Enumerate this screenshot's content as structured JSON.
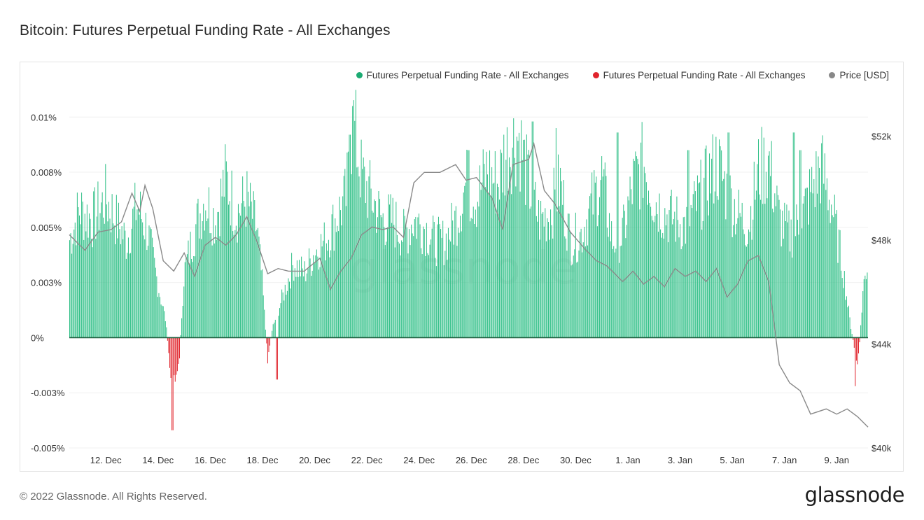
{
  "title": "Bitcoin: Futures Perpetual Funding Rate - All Exchanges",
  "footer": "© 2022 Glassnode. All Rights Reserved.",
  "logo": "glassnode",
  "watermark": "glassnode",
  "colors": {
    "positive": "#2ebf86",
    "negative": "#e0242c",
    "price": "#8a8a8a",
    "zero_line": "#1f5f3f"
  },
  "chart_data": {
    "type": "bar",
    "title": "Bitcoin: Futures Perpetual Funding Rate - All Exchanges",
    "legend": [
      {
        "label": "Futures Perpetual Funding Rate - All Exchanges",
        "color": "#1cab73"
      },
      {
        "label": "Futures Perpetual Funding Rate - All Exchanges",
        "color": "#e0242c"
      },
      {
        "label": "Price [USD]",
        "color": "#888888"
      }
    ],
    "legend_position": "top-right",
    "x_ticks": [
      "12. Dec",
      "14. Dec",
      "16. Dec",
      "18. Dec",
      "20. Dec",
      "22. Dec",
      "24. Dec",
      "26. Dec",
      "28. Dec",
      "30. Dec",
      "1. Jan",
      "3. Jan",
      "5. Jan",
      "7. Jan",
      "9. Jan"
    ],
    "x_range_days": [
      -1.4,
      29.2
    ],
    "y_left": {
      "ticks": [
        "0.01%",
        "0.008%",
        "0.005%",
        "0.003%",
        "0%",
        "-0.003%",
        "-0.005%"
      ],
      "tick_values": [
        0.01,
        0.0075,
        0.005,
        0.0025,
        0,
        -0.0025,
        -0.005
      ],
      "ylim": [
        -0.005,
        0.0115
      ]
    },
    "y_right": {
      "ticks": [
        "$52k",
        "$48k",
        "$44k",
        "$40k"
      ],
      "tick_values": [
        52000,
        48000,
        44000,
        40000
      ],
      "ylim": [
        40000,
        54000
      ]
    },
    "series": [
      {
        "name": "Futures Perpetual Funding Rate - All Exchanges",
        "axis": "left",
        "unit": "%",
        "points_per_day": 24,
        "anchors": [
          [
            -1.4,
            0.0045
          ],
          [
            -1.0,
            0.006
          ],
          [
            -0.5,
            0.0055
          ],
          [
            0.0,
            0.0065
          ],
          [
            0.4,
            0.0055
          ],
          [
            0.8,
            0.0045
          ],
          [
            1.2,
            0.0062
          ],
          [
            1.6,
            0.005
          ],
          [
            2.0,
            0.0025
          ],
          [
            2.3,
            0.0008
          ],
          [
            2.5,
            -0.002
          ],
          [
            2.8,
            -0.0015
          ],
          [
            3.0,
            0.003
          ],
          [
            3.4,
            0.005
          ],
          [
            3.8,
            0.0065
          ],
          [
            4.2,
            0.0055
          ],
          [
            4.6,
            0.0075
          ],
          [
            5.0,
            0.0058
          ],
          [
            5.4,
            0.0065
          ],
          [
            5.8,
            0.005
          ],
          [
            6.0,
            0.0025
          ],
          [
            6.2,
            -0.001
          ],
          [
            6.4,
            0.0005
          ],
          [
            6.8,
            0.002
          ],
          [
            7.2,
            0.0035
          ],
          [
            7.6,
            0.003
          ],
          [
            8.0,
            0.004
          ],
          [
            8.4,
            0.0045
          ],
          [
            8.8,
            0.0055
          ],
          [
            9.2,
            0.0065
          ],
          [
            9.5,
            0.01
          ],
          [
            9.8,
            0.0075
          ],
          [
            10.2,
            0.0065
          ],
          [
            10.6,
            0.0055
          ],
          [
            11.0,
            0.0055
          ],
          [
            11.4,
            0.0048
          ],
          [
            11.8,
            0.0055
          ],
          [
            12.2,
            0.0052
          ],
          [
            12.6,
            0.0045
          ],
          [
            13.0,
            0.0045
          ],
          [
            13.4,
            0.0055
          ],
          [
            13.8,
            0.0072
          ],
          [
            14.2,
            0.0065
          ],
          [
            14.6,
            0.0078
          ],
          [
            15.0,
            0.0072
          ],
          [
            15.4,
            0.0088
          ],
          [
            15.8,
            0.0095
          ],
          [
            16.2,
            0.0072
          ],
          [
            16.6,
            0.0055
          ],
          [
            17.0,
            0.0058
          ],
          [
            17.4,
            0.0072
          ],
          [
            17.8,
            0.0045
          ],
          [
            18.2,
            0.0048
          ],
          [
            18.6,
            0.0062
          ],
          [
            19.0,
            0.0075
          ],
          [
            19.4,
            0.0045
          ],
          [
            19.8,
            0.0048
          ],
          [
            20.2,
            0.0072
          ],
          [
            20.6,
            0.0082
          ],
          [
            21.0,
            0.0065
          ],
          [
            21.4,
            0.0058
          ],
          [
            21.8,
            0.0055
          ],
          [
            22.2,
            0.0052
          ],
          [
            22.6,
            0.0062
          ],
          [
            23.0,
            0.0072
          ],
          [
            23.4,
            0.0082
          ],
          [
            23.8,
            0.0068
          ],
          [
            24.2,
            0.0058
          ],
          [
            24.6,
            0.0052
          ],
          [
            25.0,
            0.0078
          ],
          [
            25.4,
            0.0082
          ],
          [
            25.8,
            0.0055
          ],
          [
            26.2,
            0.0048
          ],
          [
            26.6,
            0.0055
          ],
          [
            27.0,
            0.0068
          ],
          [
            27.4,
            0.008
          ],
          [
            27.8,
            0.0062
          ],
          [
            28.2,
            0.0035
          ],
          [
            28.5,
            0.0008
          ],
          [
            28.8,
            -0.0015
          ],
          [
            29.0,
            0.0022
          ],
          [
            29.2,
            0.0038
          ]
        ],
        "outliers": [
          [
            2.55,
            -0.0042
          ],
          [
            6.55,
            -0.0019
          ],
          [
            9.35,
            0.0092
          ],
          [
            9.45,
            0.0105
          ],
          [
            13.9,
            0.0085
          ],
          [
            15.25,
            0.0092
          ],
          [
            16.35,
            0.0098
          ],
          [
            17.25,
            0.0095
          ],
          [
            19.6,
            0.0093
          ],
          [
            22.3,
            0.0085
          ],
          [
            23.85,
            0.0093
          ],
          [
            26.35,
            0.0093
          ],
          [
            26.6,
            0.0085
          ],
          [
            28.7,
            -0.0022
          ]
        ]
      },
      {
        "name": "Price [USD]",
        "axis": "right",
        "unit": "USD",
        "points": [
          [
            -1.4,
            48200
          ],
          [
            -0.8,
            47600
          ],
          [
            -0.3,
            48300
          ],
          [
            0.2,
            48400
          ],
          [
            0.6,
            48700
          ],
          [
            1.0,
            49800
          ],
          [
            1.3,
            49100
          ],
          [
            1.5,
            50100
          ],
          [
            1.8,
            49200
          ],
          [
            2.2,
            47200
          ],
          [
            2.6,
            46800
          ],
          [
            3.0,
            47500
          ],
          [
            3.4,
            46600
          ],
          [
            3.8,
            47800
          ],
          [
            4.2,
            48100
          ],
          [
            4.6,
            47800
          ],
          [
            5.0,
            48200
          ],
          [
            5.4,
            48900
          ],
          [
            5.8,
            47900
          ],
          [
            6.2,
            46700
          ],
          [
            6.6,
            46900
          ],
          [
            7.0,
            46800
          ],
          [
            7.6,
            46800
          ],
          [
            8.2,
            47300
          ],
          [
            8.6,
            46100
          ],
          [
            9.0,
            46800
          ],
          [
            9.4,
            47300
          ],
          [
            9.8,
            48200
          ],
          [
            10.2,
            48500
          ],
          [
            10.6,
            48400
          ],
          [
            11.0,
            48500
          ],
          [
            11.4,
            48100
          ],
          [
            11.8,
            50200
          ],
          [
            12.2,
            50600
          ],
          [
            12.8,
            50600
          ],
          [
            13.4,
            50900
          ],
          [
            13.8,
            50300
          ],
          [
            14.2,
            50400
          ],
          [
            14.8,
            49600
          ],
          [
            15.2,
            48400
          ],
          [
            15.6,
            50900
          ],
          [
            16.2,
            51100
          ],
          [
            16.4,
            51700
          ],
          [
            16.8,
            49900
          ],
          [
            17.2,
            49400
          ],
          [
            17.8,
            48300
          ],
          [
            18.4,
            47600
          ],
          [
            18.8,
            47200
          ],
          [
            19.2,
            47000
          ],
          [
            19.8,
            46400
          ],
          [
            20.2,
            46800
          ],
          [
            20.6,
            46300
          ],
          [
            21.0,
            46600
          ],
          [
            21.4,
            46200
          ],
          [
            21.8,
            46900
          ],
          [
            22.2,
            46600
          ],
          [
            22.6,
            46800
          ],
          [
            23.0,
            46400
          ],
          [
            23.4,
            46900
          ],
          [
            23.8,
            45800
          ],
          [
            24.2,
            46300
          ],
          [
            24.6,
            47200
          ],
          [
            25.0,
            47400
          ],
          [
            25.4,
            46400
          ],
          [
            25.8,
            43200
          ],
          [
            26.2,
            42500
          ],
          [
            26.6,
            42200
          ],
          [
            27.0,
            41300
          ],
          [
            27.6,
            41500
          ],
          [
            28.0,
            41300
          ],
          [
            28.4,
            41500
          ],
          [
            28.8,
            41200
          ],
          [
            29.2,
            40800
          ]
        ]
      }
    ]
  }
}
